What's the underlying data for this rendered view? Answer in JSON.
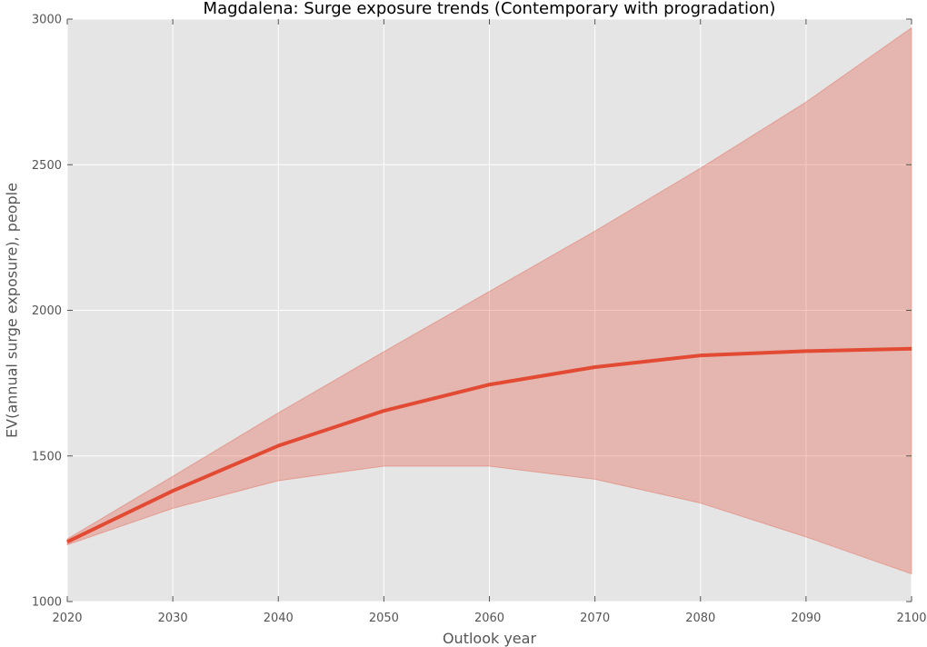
{
  "chart_data": {
    "type": "line",
    "title": "Magdalena: Surge exposure trends (Contemporary with progradation)",
    "xlabel": "Outlook year",
    "ylabel": "EV(annual surge exposure), people",
    "xlim": [
      2020,
      2100
    ],
    "ylim": [
      1000,
      3000
    ],
    "xticks": [
      "2020",
      "2030",
      "2040",
      "2050",
      "2060",
      "2070",
      "2080",
      "2090",
      "2100"
    ],
    "yticks": [
      "1000",
      "1500",
      "2000",
      "2500",
      "3000"
    ],
    "grid": true,
    "legend": "none",
    "x": [
      2020,
      2030,
      2040,
      2050,
      2060,
      2070,
      2080,
      2090,
      2100
    ],
    "series": [
      {
        "values": [
          1205,
          1380,
          1535,
          1655,
          1745,
          1805,
          1845,
          1860,
          1868
        ],
        "color": "#e24a33"
      }
    ],
    "band": {
      "lower": [
        1195,
        1320,
        1415,
        1465,
        1465,
        1420,
        1338,
        1222,
        1095
      ],
      "upper": [
        1215,
        1430,
        1648,
        1858,
        2065,
        2272,
        2488,
        2715,
        2970
      ],
      "color": "#e24a33",
      "opacity": 0.3
    },
    "colors": {
      "plot_background": "#e5e5e5",
      "grid": "#ffffff"
    }
  }
}
